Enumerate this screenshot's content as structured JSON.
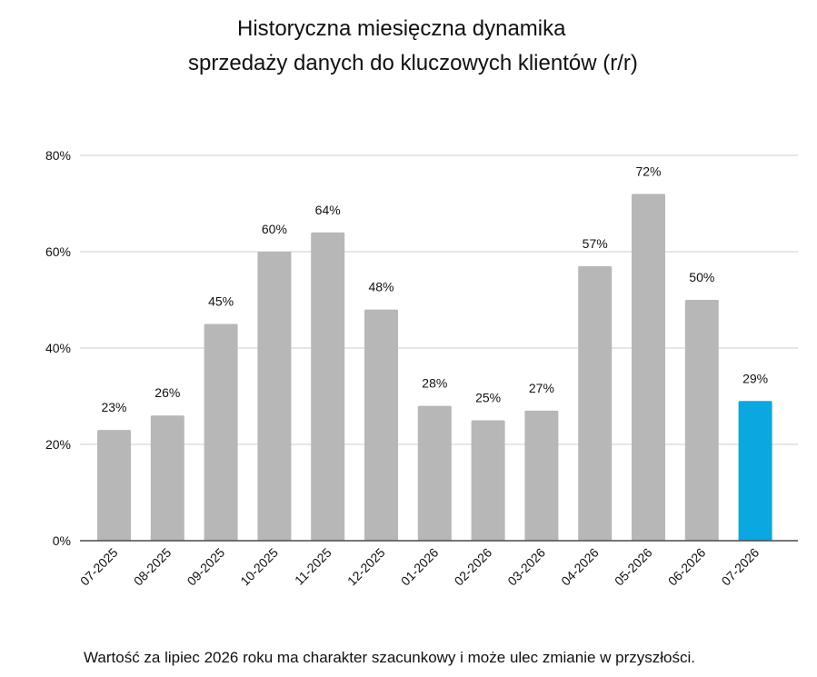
{
  "chart_data": {
    "type": "bar",
    "title": "Historyczna miesięczna dynamika sprzedaży danych do kluczowych klientów (r/r)",
    "title_lines": [
      "Historyczna miesięczna dynamika",
      "sprzedaży danych do kluczowych klientów (r/r)"
    ],
    "categories": [
      "07-2025",
      "08-2025",
      "09-2025",
      "10-2025",
      "11-2025",
      "12-2025",
      "01-2026",
      "02-2026",
      "03-2026",
      "04-2026",
      "05-2026",
      "06-2026",
      "07-2026"
    ],
    "values": [
      23,
      26,
      45,
      60,
      64,
      48,
      28,
      25,
      27,
      57,
      72,
      50,
      29
    ],
    "data_labels": [
      "23%",
      "26%",
      "45%",
      "60%",
      "64%",
      "48%",
      "28%",
      "25%",
      "27%",
      "57%",
      "72%",
      "50%",
      "29%"
    ],
    "y_ticks": [
      0,
      20,
      40,
      60,
      80
    ],
    "y_tick_labels": [
      "0%",
      "20%",
      "40%",
      "60%",
      "80%"
    ],
    "ylim": [
      0,
      80
    ],
    "xlabel": "",
    "ylabel": "",
    "grid": true,
    "legend": "none",
    "colors": {
      "bar": "#b7b7b7",
      "highlight_bar": "#0aa7e0",
      "grid": "#cfcfcf",
      "axis": "#4a4a4a",
      "text": "#111111"
    },
    "highlight_category": "07-2026"
  },
  "footnote": "Wartość za lipiec 2026 roku ma charakter szacunkowy i może ulec zmianie w przyszłości."
}
